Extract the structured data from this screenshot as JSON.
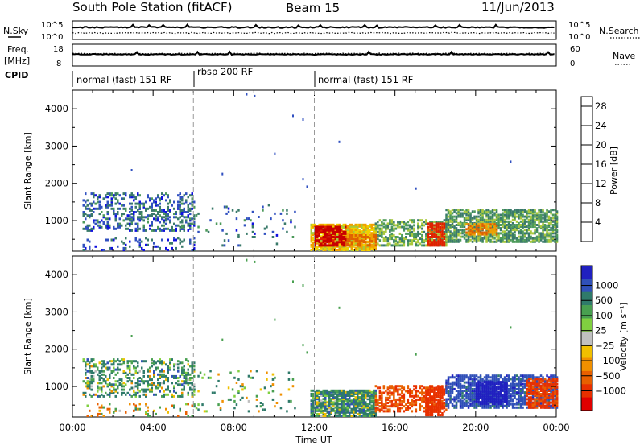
{
  "header": {
    "station": "South Pole Station (fitACF)",
    "beam": "Beam 15",
    "date": "11/Jun/2013"
  },
  "top_strip": {
    "left_label": "N.Sky",
    "right_label": "N.Search",
    "left_ticks": [
      "10^5",
      "10^0"
    ],
    "right_ticks": [
      "10^5",
      "10^0"
    ]
  },
  "freq_strip": {
    "left_label_1": "Freq.",
    "left_label_2": "[MHz]",
    "right_label": "Nave",
    "left_ticks": [
      "18",
      "8"
    ],
    "right_ticks": [
      "60",
      "0"
    ]
  },
  "cpid": {
    "label": "CPID",
    "segments": [
      {
        "start_hour": 0,
        "end_hour": 6,
        "text": "normal (fast) 151 RF"
      },
      {
        "start_hour": 6,
        "end_hour": 12,
        "text": "rbsp 200 RF"
      },
      {
        "start_hour": 12,
        "end_hour": 24,
        "text": "normal (fast) 151 RF"
      }
    ]
  },
  "colors": {
    "power_scale": [
      "#1010e0",
      "#3050c0",
      "#3a7a6a",
      "#4c9a5a",
      "#a8c83a",
      "#f0d000",
      "#f0a000",
      "#e06000",
      "#e02000",
      "#c80000"
    ],
    "velocity_scale": [
      "#2020c0",
      "#3050b8",
      "#2f7a6a",
      "#49a050",
      "#80d040",
      "#c0c0c0",
      "#f0c000",
      "#f09000",
      "#e86000",
      "#e83000",
      "#e00000"
    ]
  },
  "chart_data": [
    {
      "type": "heatmap",
      "name_hint": "power-panel",
      "xlabel": "",
      "ylabel": "Slant Range [km]",
      "x_range_hours": [
        0,
        24
      ],
      "ylim": [
        180,
        4500
      ],
      "yticks": [
        1000,
        2000,
        3000,
        4000
      ],
      "colorbar": {
        "label": "Power [dB]",
        "tick_labels": [
          "4",
          "8",
          "12",
          "16",
          "20",
          "24",
          "28"
        ],
        "range": [
          0,
          30
        ]
      },
      "scatter_regions": [
        {
          "x0": 0.5,
          "x1": 6.0,
          "y0": 700,
          "y1": 1700,
          "value": 6,
          "density": 0.35
        },
        {
          "x0": 0.5,
          "x1": 6.0,
          "y0": 180,
          "y1": 500,
          "value": 5,
          "density": 0.15
        },
        {
          "x0": 6.0,
          "x1": 11.0,
          "y0": 300,
          "y1": 1400,
          "value": 6,
          "density": 0.06
        },
        {
          "x0": 11.8,
          "x1": 15.0,
          "y0": 180,
          "y1": 900,
          "value": 17,
          "density": 0.85
        },
        {
          "x0": 15.0,
          "x1": 18.5,
          "y0": 300,
          "y1": 1000,
          "value": 11,
          "density": 0.55
        },
        {
          "x0": 18.5,
          "x1": 24.0,
          "y0": 400,
          "y1": 1300,
          "value": 10,
          "density": 0.7
        }
      ],
      "hot_spots": [
        {
          "x0": 12.0,
          "x1": 13.5,
          "y0": 300,
          "y1": 800,
          "value": 28
        },
        {
          "x0": 13.5,
          "x1": 15.0,
          "y0": 300,
          "y1": 600,
          "value": 22
        },
        {
          "x0": 17.6,
          "x1": 18.4,
          "y0": 300,
          "y1": 900,
          "value": 25
        },
        {
          "x0": 19.5,
          "x1": 21.0,
          "y0": 600,
          "y1": 900,
          "value": 21
        }
      ],
      "isolated_points": [
        {
          "x": 8.6,
          "y": 4380
        },
        {
          "x": 9.0,
          "y": 4330
        },
        {
          "x": 10.9,
          "y": 3800
        },
        {
          "x": 11.4,
          "y": 3700
        },
        {
          "x": 2.9,
          "y": 2340
        },
        {
          "x": 10.0,
          "y": 2780
        },
        {
          "x": 7.4,
          "y": 2240
        },
        {
          "x": 11.4,
          "y": 2100
        },
        {
          "x": 11.6,
          "y": 1900
        },
        {
          "x": 13.2,
          "y": 3100
        },
        {
          "x": 21.7,
          "y": 2570
        },
        {
          "x": 17.0,
          "y": 1850
        }
      ]
    },
    {
      "type": "heatmap",
      "name_hint": "velocity-panel",
      "xlabel": "Time UT",
      "ylabel": "Slant Range [km]",
      "x_range_hours": [
        0,
        24
      ],
      "x_tick_labels": [
        "00:00",
        "04:00",
        "08:00",
        "12:00",
        "16:00",
        "20:00",
        "00:00"
      ],
      "ylim": [
        180,
        4500
      ],
      "yticks": [
        1000,
        2000,
        3000,
        4000
      ],
      "colorbar": {
        "label": "Velocity [m s⁻¹]",
        "tick_labels": [
          "1000",
          "500",
          "100",
          "25",
          "−25",
          "−100",
          "−500",
          "−1000"
        ],
        "range": [
          -1200,
          1200
        ]
      },
      "scatter_regions": [
        {
          "x0": 0.5,
          "x1": 6.0,
          "y0": 700,
          "y1": 1700,
          "value": 180,
          "density": 0.35
        },
        {
          "x0": 0.5,
          "x1": 6.0,
          "y0": 180,
          "y1": 500,
          "value": -60,
          "density": 0.15
        },
        {
          "x0": 6.0,
          "x1": 11.0,
          "y0": 300,
          "y1": 1400,
          "value": 120,
          "density": 0.06
        },
        {
          "x0": 11.8,
          "x1": 15.0,
          "y0": 180,
          "y1": 900,
          "value": 200,
          "density": 0.85
        },
        {
          "x0": 15.0,
          "x1": 18.5,
          "y0": 300,
          "y1": 1000,
          "value": -400,
          "density": 0.55
        },
        {
          "x0": 18.5,
          "x1": 24.0,
          "y0": 400,
          "y1": 1300,
          "value": 600,
          "density": 0.7
        }
      ],
      "hot_spots": [
        {
          "x0": 17.5,
          "x1": 18.3,
          "y0": 200,
          "y1": 1000,
          "value": -700
        },
        {
          "x0": 22.5,
          "x1": 24.0,
          "y0": 400,
          "y1": 1200,
          "value": -450
        },
        {
          "x0": 20.0,
          "x1": 21.5,
          "y0": 500,
          "y1": 1100,
          "value": 900
        }
      ],
      "isolated_points": [
        {
          "x": 8.6,
          "y": 4380
        },
        {
          "x": 9.0,
          "y": 4330
        },
        {
          "x": 10.9,
          "y": 3800
        },
        {
          "x": 11.4,
          "y": 3700
        },
        {
          "x": 2.9,
          "y": 2340
        },
        {
          "x": 10.0,
          "y": 2780
        },
        {
          "x": 7.4,
          "y": 2240
        },
        {
          "x": 11.4,
          "y": 2100
        },
        {
          "x": 11.6,
          "y": 1900
        },
        {
          "x": 13.2,
          "y": 3100
        },
        {
          "x": 21.7,
          "y": 2570
        },
        {
          "x": 17.0,
          "y": 1850
        }
      ]
    }
  ]
}
